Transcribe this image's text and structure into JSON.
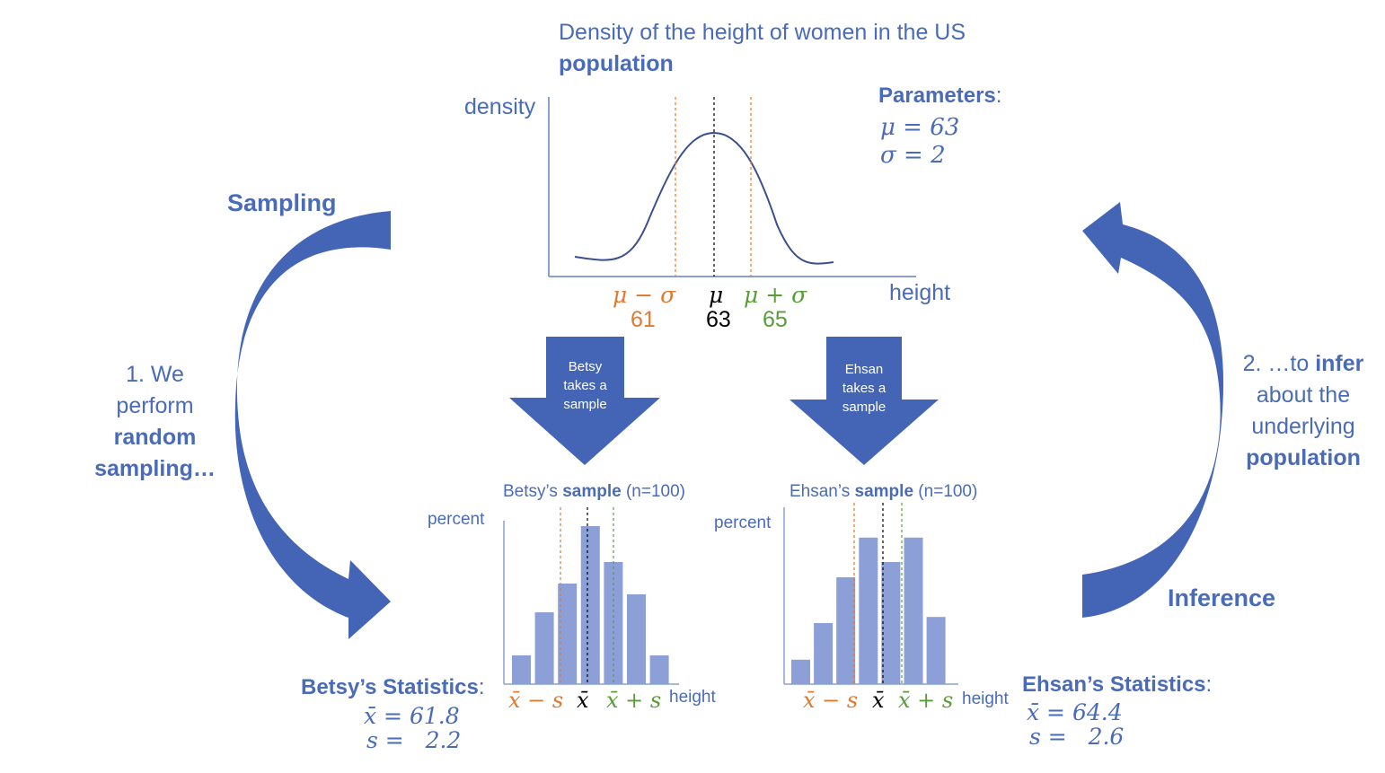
{
  "colors": {
    "blue_text": "#4a6bb8",
    "arrow_blue": "#4464b5",
    "bar_fill": "#8c9fd6",
    "orange": "#e07a30",
    "green": "#5a9c3a",
    "black": "#000000",
    "axis": "#8aa0d0"
  },
  "title": {
    "line1": "Density of the height of women in the US",
    "line2": "population"
  },
  "parameters": {
    "label": "Parameters",
    "colon": ":",
    "mu": "μ = 63",
    "sigma": "σ = 2"
  },
  "population_axes": {
    "ylabel": "density",
    "xlabel": "height"
  },
  "population_ticks": {
    "mu_minus_sigma": "μ − σ",
    "mu": "μ",
    "mu_plus_sigma": "μ + σ",
    "v61": "61",
    "v63": "63",
    "v65": "65"
  },
  "sampling": {
    "title": "Sampling",
    "desc_line1": "1. We",
    "desc_line2": "perform",
    "desc_line3": "random",
    "desc_line4": "sampling…"
  },
  "inference": {
    "title": "Inference",
    "desc_line1_pre": "2. …to ",
    "desc_line1_bold": "infer",
    "desc_line2": "about the",
    "desc_line3": "underlying",
    "desc_line4": "population"
  },
  "betsy_arrow": {
    "line1": "Betsy",
    "line2": "takes a",
    "line3": "sample"
  },
  "ehsan_arrow": {
    "line1": "Ehsan",
    "line2": "takes a",
    "line3": "sample"
  },
  "betsy_chart": {
    "title_pre": "Betsy’s ",
    "title_bold": "sample",
    "title_post": " (n=100)",
    "ylabel": "percent",
    "xlabel": "height",
    "tick_minus": "x̄ − s",
    "tick_mean": "x̄",
    "tick_plus": "x̄ + s"
  },
  "ehsan_chart": {
    "title_pre": "Ehsan’s ",
    "title_bold": "sample",
    "title_post": " (n=100)",
    "ylabel": "percent",
    "xlabel": "height",
    "tick_minus": "x̄ − s",
    "tick_mean": "x̄",
    "tick_plus": "x̄ + s"
  },
  "betsy_stats": {
    "label": "Betsy’s Statistics",
    "colon": ":",
    "mean": "x̄ = 61.8",
    "sd": "s =   2.2"
  },
  "ehsan_stats": {
    "label": "Ehsan’s Statistics",
    "colon": ":",
    "mean": "x̄ = 64.4",
    "sd": "s =   2.6"
  },
  "chart_data": [
    {
      "type": "line",
      "description_ref": "population density curve",
      "mean": 63,
      "sd": 2,
      "x_markers": [
        61,
        63,
        65
      ]
    },
    {
      "type": "bar",
      "values": [
        8,
        20,
        28,
        44,
        34,
        25,
        8
      ],
      "mean_ref": 61.8,
      "sd_ref": 2.2
    },
    {
      "type": "bar",
      "values": [
        8,
        20,
        35,
        48,
        40,
        48,
        22
      ],
      "mean_ref": 64.4,
      "sd_ref": 2.6
    }
  ]
}
